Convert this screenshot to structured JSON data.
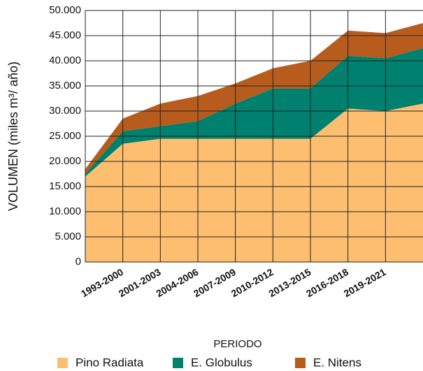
{
  "chart_data": {
    "type": "stacked_area",
    "y_label": "VOLUMEN (miles m³/ año)",
    "x_label": "PERIODO",
    "categories": [
      null,
      "1993-2000",
      "2001-2003",
      "2004-2006",
      "2007-2009",
      "2010-2012",
      "2013-2015",
      "2016-2018",
      "2019-2021",
      null
    ],
    "series": [
      {
        "name": "Pino Radiata",
        "color": "#fdbf6f",
        "values": [
          17000,
          23500,
          24500,
          24500,
          24500,
          24500,
          24500,
          30500,
          30000,
          31500
        ]
      },
      {
        "name": "E. Globulus",
        "color": "#00806e",
        "values": [
          500,
          2500,
          2500,
          3500,
          7000,
          10000,
          10000,
          10500,
          10500,
          11000
        ]
      },
      {
        "name": "E. Nitens",
        "color": "#b85c1e",
        "values": [
          1000,
          2500,
          4500,
          5000,
          4000,
          4000,
          5500,
          5000,
          5000,
          5000
        ]
      }
    ],
    "ylim": [
      0,
      50000
    ],
    "yticks": [
      0,
      {
        "value": 5000,
        "label": "5.000"
      },
      {
        "value": 10000,
        "label": "10.000"
      },
      {
        "value": 15000,
        "label": "15.000"
      },
      {
        "value": 20000,
        "label": "20.000"
      },
      {
        "value": 25000,
        "label": "25.000"
      },
      {
        "value": 30000,
        "label": "30.000"
      },
      {
        "value": 35000,
        "label": "35.000"
      },
      {
        "value": 40000,
        "label": "40.000"
      },
      {
        "value": 45000,
        "label": "45.000"
      },
      {
        "value": 50000,
        "label": "50.000"
      }
    ],
    "grid": true
  }
}
